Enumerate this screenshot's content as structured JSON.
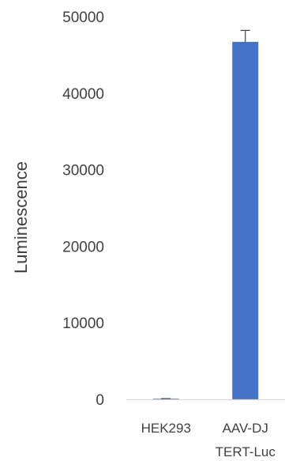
{
  "chart_data": {
    "type": "bar",
    "title": "",
    "xlabel": "",
    "ylabel": "Luminescence",
    "categories": [
      [
        "HEK293"
      ],
      [
        "AAV-DJ",
        "TERT-Luc"
      ]
    ],
    "values": [
      80,
      46700
    ],
    "errors": [
      10,
      1500
    ],
    "ylim": [
      0,
      50000
    ],
    "yticks": [
      0,
      10000,
      20000,
      30000,
      40000,
      50000
    ],
    "grid": false,
    "legend": "none",
    "colors": {
      "bar": "#4472c4",
      "axis": "#d9d9d9",
      "error": "#404040",
      "text": "#404040"
    }
  }
}
